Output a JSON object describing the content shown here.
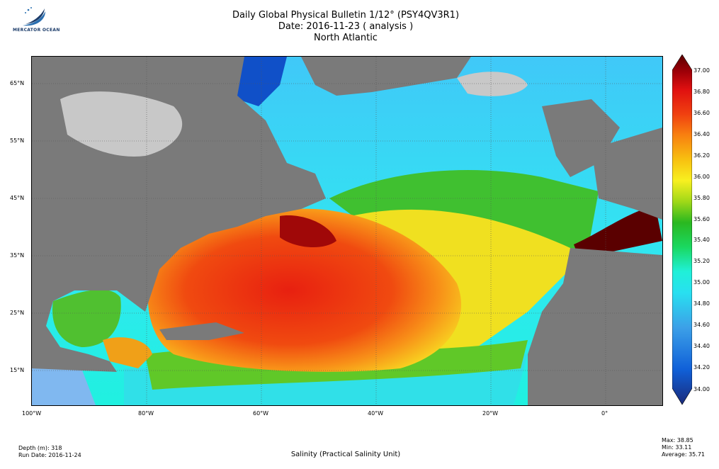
{
  "header": {
    "title_line1": "Daily Global Physical Bulletin 1/12° (PSY4QV3R1)",
    "title_line2": "Date: 2016-11-23 ( analysis )",
    "title_line3": "North Atlantic"
  },
  "logo": {
    "text": "MERCATOR OCEAN",
    "icon": "mercator-wave-logo"
  },
  "map": {
    "lat_labels": [
      "65°N",
      "55°N",
      "45°N",
      "35°N",
      "25°N",
      "15°N"
    ],
    "lon_labels": [
      "100°W",
      "80°W",
      "60°W",
      "40°W",
      "20°W",
      "0°"
    ],
    "colors": {
      "land": "#7a7a7a",
      "ice_land": "#c8c8c8",
      "grid": "#555555"
    }
  },
  "colorbar": {
    "labels": [
      "37.00",
      "36.80",
      "36.60",
      "36.40",
      "36.20",
      "36.00",
      "35.80",
      "35.60",
      "35.40",
      "35.20",
      "35.00",
      "34.80",
      "34.60",
      "34.40",
      "34.20",
      "34.00"
    ],
    "stops": [
      "#1a2a7a",
      "#1060d8",
      "#3ca0e8",
      "#28e0f0",
      "#20f0d8",
      "#1ad860",
      "#2ab820",
      "#a0d818",
      "#f8f020",
      "#f8c010",
      "#f88010",
      "#f04010",
      "#e01010",
      "#a00008",
      "#5a0000"
    ]
  },
  "footer": {
    "depth": "Depth (m): 318",
    "run_date": "Run Date: 2016-11-24",
    "quantity": "Salinity (Practical Salinity Unit)",
    "max": "Max: 38.85",
    "min": "Min: 33.11",
    "average": "Average: 35.71"
  }
}
